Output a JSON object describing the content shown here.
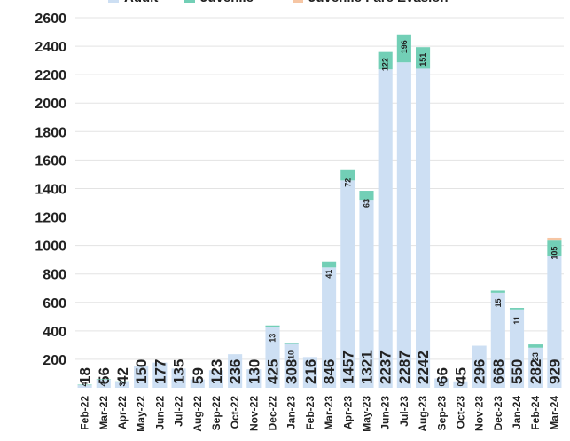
{
  "chart_data": {
    "type": "stacked_bar",
    "categories": [
      "Feb-22",
      "Mar-22",
      "Apr-22",
      "May-22",
      "Jun-22",
      "Jul-22",
      "Aug-22",
      "Sep-22",
      "Oct-22",
      "Nov-22",
      "Dec-22",
      "Jan-23",
      "Feb-23",
      "Mar-23",
      "Apr-23",
      "May-23",
      "Jun-23",
      "Jul-23",
      "Aug-23",
      "Sep-23",
      "Oct-23",
      "Nov-23",
      "Dec-23",
      "Jan-24",
      "Feb-24",
      "Mar-24"
    ],
    "series": [
      {
        "name": "Adult",
        "color": "#cddff3",
        "values": [
          18,
          56,
          42,
          150,
          177,
          135,
          59,
          123,
          236,
          130,
          425,
          308,
          216,
          846,
          1457,
          1321,
          2237,
          2287,
          2242,
          66,
          45,
          296,
          668,
          550,
          282,
          929
        ]
      },
      {
        "name": "Juvenile",
        "color": "#72cfb6",
        "values": [
          4,
          4,
          3,
          null,
          null,
          null,
          null,
          null,
          null,
          null,
          13,
          10,
          null,
          41,
          72,
          63,
          122,
          196,
          151,
          0,
          0,
          null,
          15,
          11,
          23,
          105
        ]
      },
      {
        "name": "Juvenile Fare Evasion",
        "color": "#f6c6a4",
        "values": [
          null,
          null,
          null,
          null,
          null,
          null,
          null,
          null,
          null,
          null,
          null,
          null,
          null,
          null,
          null,
          null,
          null,
          null,
          null,
          null,
          null,
          null,
          null,
          null,
          null,
          20
        ]
      }
    ],
    "ylim": [
      0,
      2600
    ],
    "yticks": [
      200,
      400,
      600,
      800,
      1000,
      1200,
      1400,
      1600,
      1800,
      2000,
      2200,
      2400,
      2600
    ],
    "grid": true
  }
}
